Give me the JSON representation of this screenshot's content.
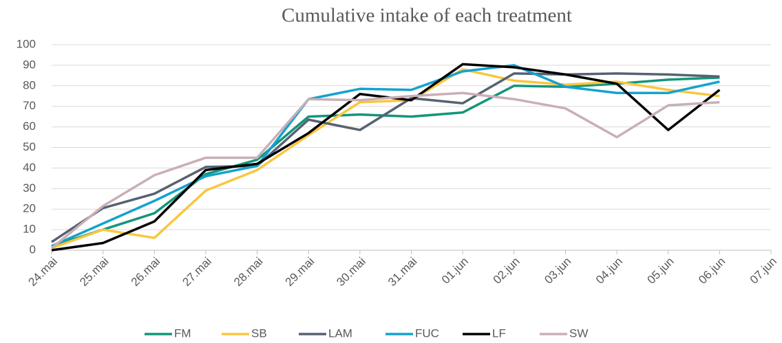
{
  "chart_data": {
    "type": "line",
    "title": "Cumulative intake of each treatment",
    "categories": [
      "24.mai",
      "25.mai",
      "26.mai",
      "27.mai",
      "28.mai",
      "29.mai",
      "30.mai",
      "31.mai",
      "01.jun",
      "02.jun",
      "03.jun",
      "04.jun",
      "05.jun",
      "06.jun",
      "07.jun"
    ],
    "series": [
      {
        "name": "FM",
        "color": "#12967a",
        "values": [
          2,
          10,
          18,
          37,
          44,
          65,
          66,
          65,
          67,
          80,
          79.5,
          81,
          83,
          84,
          null
        ]
      },
      {
        "name": "SB",
        "color": "#fac63f",
        "values": [
          1,
          10,
          6,
          29,
          39,
          56,
          72,
          73,
          88,
          82.5,
          80.5,
          82,
          78,
          75,
          null
        ]
      },
      {
        "name": "LAM",
        "color": "#566271",
        "values": [
          4,
          20.5,
          27.5,
          40.5,
          41,
          63.5,
          58.5,
          74,
          71.5,
          86,
          85.5,
          86,
          85.5,
          84.5,
          null
        ]
      },
      {
        "name": "FUC",
        "color": "#14a2cf",
        "values": [
          2,
          13,
          24,
          36,
          41,
          73.5,
          78.5,
          78,
          87,
          90,
          79.5,
          76.5,
          76.5,
          82,
          null
        ]
      },
      {
        "name": "LF",
        "color": "#000000",
        "values": [
          0,
          3.5,
          14,
          39,
          42,
          57,
          76,
          73,
          90.5,
          89,
          85.5,
          81,
          58.5,
          78,
          null
        ]
      },
      {
        "name": "SW",
        "color": "#c9afb6",
        "values": [
          1,
          21.5,
          36.5,
          45,
          45,
          73.5,
          73,
          75,
          76.5,
          73.5,
          69,
          55,
          70.5,
          72,
          null
        ]
      }
    ],
    "ylim": [
      0,
      100
    ],
    "yticks": [
      0,
      10,
      20,
      30,
      40,
      50,
      60,
      70,
      80,
      90,
      100
    ],
    "grid": true,
    "legend": "bottom"
  }
}
